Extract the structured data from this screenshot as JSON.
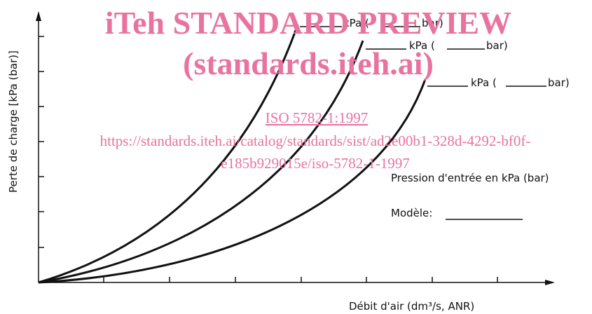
{
  "watermark": {
    "title": "iTeh STANDARD PREVIEW",
    "subtitle": "(standards.iteh.ai)",
    "standard": "ISO 5782-1:1997",
    "url_lines": [
      "https://standards.iteh.ai/catalog/standards/sist/ad2e00b1-328d-4292-bf0f-",
      "e185b929015e/iso-5782-1-1997"
    ]
  },
  "axes": {
    "y_label": "Perte de charge [kPa (bar)]",
    "x_label": "Débit d'air (dm³/s, ANR)"
  },
  "curves": [
    {
      "unit": "kPa (",
      "unit2": "bar)"
    },
    {
      "unit": "kPa (",
      "unit2": "bar)"
    },
    {
      "unit": "kPa (",
      "unit2": "bar)"
    }
  ],
  "legend": {
    "pressure": "Pression d'entrée en kPa (bar)",
    "model": "Modèle:"
  }
}
